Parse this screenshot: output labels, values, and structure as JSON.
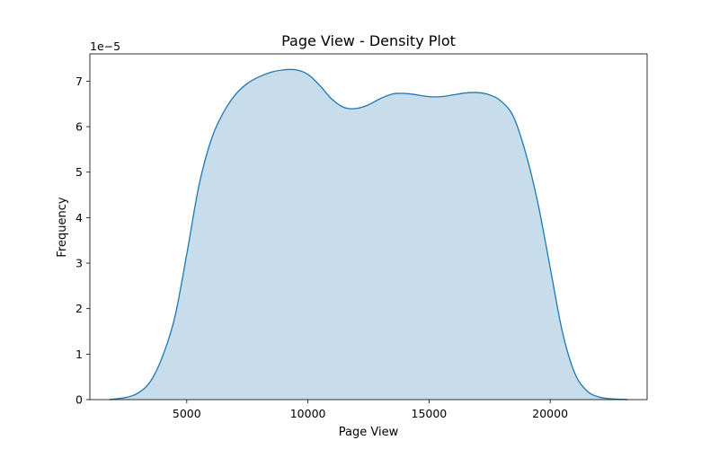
{
  "chart_data": {
    "type": "area",
    "title": "Page View - Density Plot",
    "xlabel": "Page View",
    "ylabel": "Frequency",
    "y_multiplier_label": "1e−5",
    "xlim": [
      1000,
      24000
    ],
    "ylim": [
      0,
      7.6
    ],
    "x_ticks": [
      5000,
      10000,
      15000,
      20000
    ],
    "x_tick_labels": [
      "5000",
      "10000",
      "15000",
      "20000"
    ],
    "y_ticks": [
      0,
      1,
      2,
      3,
      4,
      5,
      6,
      7
    ],
    "y_tick_labels": [
      "0",
      "1",
      "2",
      "3",
      "4",
      "5",
      "6",
      "7"
    ],
    "grid": false,
    "legend": "none",
    "colors": {
      "line": "#1f77b4",
      "fill": "#1f77b4",
      "fill_opacity": 0.25
    },
    "series": [
      {
        "x": [
          1800,
          2500,
          3000,
          3500,
          4000,
          4500,
          5000,
          5500,
          6000,
          6500,
          7000,
          7500,
          8000,
          8500,
          9000,
          9500,
          10000,
          10500,
          11000,
          11500,
          12000,
          12500,
          13000,
          13500,
          14000,
          14500,
          15000,
          15500,
          16000,
          16500,
          17000,
          17500,
          18000,
          18500,
          19000,
          19500,
          20000,
          20500,
          21000,
          21500,
          22000,
          22500,
          23200
        ],
        "y": [
          0.0,
          0.05,
          0.15,
          0.4,
          0.95,
          1.8,
          3.2,
          4.7,
          5.7,
          6.3,
          6.7,
          6.95,
          7.1,
          7.2,
          7.25,
          7.25,
          7.15,
          6.9,
          6.6,
          6.42,
          6.4,
          6.48,
          6.62,
          6.72,
          6.73,
          6.7,
          6.66,
          6.66,
          6.7,
          6.74,
          6.75,
          6.7,
          6.55,
          6.2,
          5.4,
          4.3,
          2.9,
          1.5,
          0.6,
          0.2,
          0.06,
          0.02,
          0.0
        ]
      }
    ]
  }
}
